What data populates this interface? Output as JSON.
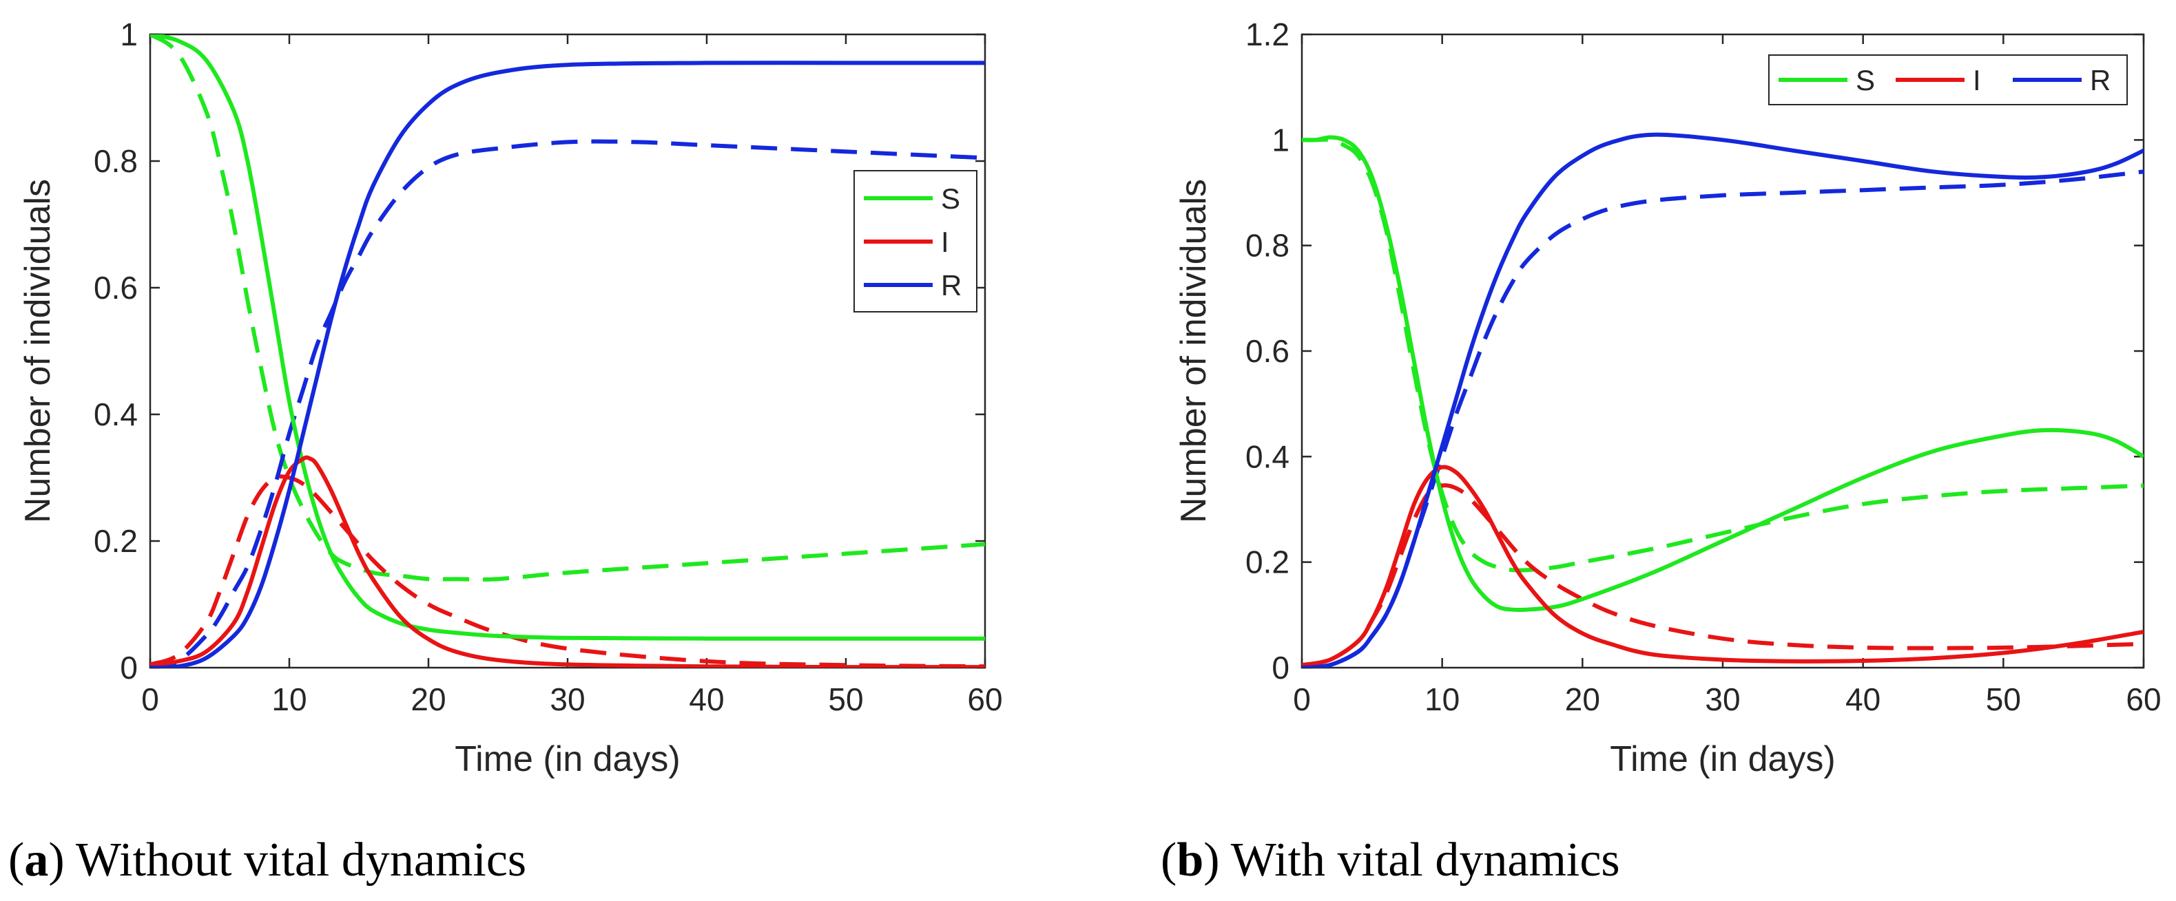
{
  "chart_data": [
    {
      "type": "line",
      "panel_letter": "a",
      "caption": "Without vital dynamics",
      "xlabel": "Time (in days)",
      "ylabel": "Number of individuals",
      "xlim": [
        0,
        60
      ],
      "ylim": [
        0,
        1
      ],
      "xticks": [
        "0",
        "10",
        "20",
        "30",
        "40",
        "50",
        "60"
      ],
      "yticks": [
        "0",
        "0.2",
        "0.4",
        "0.6",
        "0.8",
        "1"
      ],
      "legend": {
        "position": "right-middle",
        "orientation": "vertical",
        "entries": [
          "S",
          "I",
          "R"
        ]
      },
      "colors": {
        "S": "#1ee81e",
        "I": "#e81414",
        "R": "#1428dc"
      },
      "series": [
        {
          "name": "S",
          "style": "solid",
          "x": [
            0,
            2,
            4,
            6,
            7,
            8,
            9,
            10,
            11,
            12,
            13,
            14,
            15,
            16,
            18,
            20,
            22,
            25,
            30,
            40,
            50,
            60
          ],
          "y": [
            1.0,
            0.99,
            0.96,
            0.88,
            0.8,
            0.68,
            0.55,
            0.42,
            0.32,
            0.24,
            0.18,
            0.14,
            0.11,
            0.09,
            0.07,
            0.06,
            0.055,
            0.05,
            0.047,
            0.046,
            0.046,
            0.046
          ]
        },
        {
          "name": "I",
          "style": "solid",
          "x": [
            0,
            2,
            4,
            6,
            7,
            8,
            9,
            10,
            11,
            11.5,
            12,
            13,
            14,
            15,
            16,
            18,
            20,
            22,
            25,
            30,
            40,
            50,
            60
          ],
          "y": [
            0.005,
            0.01,
            0.025,
            0.07,
            0.12,
            0.19,
            0.26,
            0.31,
            0.33,
            0.33,
            0.32,
            0.28,
            0.23,
            0.18,
            0.14,
            0.08,
            0.045,
            0.025,
            0.012,
            0.005,
            0.002,
            0.001,
            0.001
          ]
        },
        {
          "name": "R",
          "style": "solid",
          "x": [
            0,
            2,
            4,
            6,
            7,
            8,
            9,
            10,
            11,
            12,
            13,
            14,
            15,
            16,
            18,
            20,
            22,
            25,
            30,
            40,
            50,
            60
          ],
          "y": [
            0.0,
            0.002,
            0.015,
            0.05,
            0.08,
            0.13,
            0.2,
            0.28,
            0.37,
            0.46,
            0.55,
            0.63,
            0.7,
            0.76,
            0.84,
            0.89,
            0.92,
            0.94,
            0.952,
            0.955,
            0.955,
            0.955
          ]
        },
        {
          "name": "S",
          "style": "dashed",
          "x": [
            0,
            2,
            4,
            5,
            6,
            7,
            8,
            9,
            10,
            11,
            12,
            13,
            14,
            16,
            18,
            20,
            22,
            25,
            30,
            40,
            50,
            60
          ],
          "y": [
            1.0,
            0.97,
            0.88,
            0.8,
            0.7,
            0.58,
            0.47,
            0.37,
            0.3,
            0.25,
            0.21,
            0.18,
            0.165,
            0.15,
            0.145,
            0.14,
            0.14,
            0.14,
            0.15,
            0.165,
            0.18,
            0.195
          ]
        },
        {
          "name": "I",
          "style": "dashed",
          "x": [
            0,
            2,
            4,
            5,
            6,
            7,
            8,
            9,
            10,
            11,
            12,
            14,
            16,
            18,
            20,
            22,
            25,
            30,
            40,
            50,
            60
          ],
          "y": [
            0.005,
            0.02,
            0.07,
            0.12,
            0.18,
            0.24,
            0.28,
            0.3,
            0.3,
            0.29,
            0.27,
            0.22,
            0.17,
            0.13,
            0.1,
            0.08,
            0.055,
            0.03,
            0.01,
            0.004,
            0.002
          ]
        },
        {
          "name": "R",
          "style": "dashed",
          "x": [
            0,
            2,
            4,
            5,
            6,
            7,
            8,
            9,
            10,
            11,
            12,
            13,
            14,
            15,
            16,
            18,
            20,
            22,
            25,
            30,
            35,
            40,
            50,
            60
          ],
          "y": [
            0.0,
            0.01,
            0.05,
            0.08,
            0.12,
            0.16,
            0.22,
            0.29,
            0.37,
            0.44,
            0.51,
            0.56,
            0.61,
            0.65,
            0.69,
            0.75,
            0.79,
            0.81,
            0.82,
            0.83,
            0.83,
            0.825,
            0.815,
            0.805
          ]
        }
      ]
    },
    {
      "type": "line",
      "panel_letter": "b",
      "caption": "With vital dynamics",
      "xlabel": "Time (in days)",
      "ylabel": "Number of individuals",
      "xlim": [
        0,
        60
      ],
      "ylim": [
        0,
        1.2
      ],
      "xticks": [
        "0",
        "10",
        "20",
        "30",
        "40",
        "50",
        "60"
      ],
      "yticks": [
        "0",
        "0.2",
        "0.4",
        "0.6",
        "0.8",
        "1",
        "1.2"
      ],
      "legend": {
        "position": "top-right",
        "orientation": "horizontal",
        "entries": [
          "S",
          "I",
          "R"
        ]
      },
      "colors": {
        "S": "#1ee81e",
        "I": "#e81414",
        "R": "#1428dc"
      },
      "series": [
        {
          "name": "S",
          "style": "solid",
          "x": [
            0,
            1,
            2,
            3,
            4,
            5,
            6,
            7,
            8,
            9,
            10,
            11,
            12,
            13,
            14,
            15,
            16,
            18,
            20,
            25,
            30,
            35,
            40,
            45,
            50,
            53,
            56,
            58,
            60
          ],
          "y": [
            1.0,
            1.0,
            1.005,
            1.0,
            0.98,
            0.93,
            0.84,
            0.72,
            0.58,
            0.44,
            0.32,
            0.23,
            0.17,
            0.135,
            0.115,
            0.11,
            0.11,
            0.115,
            0.13,
            0.18,
            0.24,
            0.3,
            0.36,
            0.41,
            0.44,
            0.45,
            0.445,
            0.43,
            0.4
          ]
        },
        {
          "name": "I",
          "style": "solid",
          "x": [
            0,
            2,
            4,
            5,
            6,
            7,
            8,
            9,
            10,
            11,
            12,
            13,
            14,
            15,
            16,
            18,
            20,
            22,
            25,
            30,
            35,
            40,
            45,
            50,
            55,
            60
          ],
          "y": [
            0.005,
            0.015,
            0.05,
            0.09,
            0.15,
            0.23,
            0.31,
            0.36,
            0.38,
            0.37,
            0.34,
            0.3,
            0.25,
            0.2,
            0.16,
            0.1,
            0.065,
            0.045,
            0.025,
            0.015,
            0.012,
            0.013,
            0.018,
            0.028,
            0.045,
            0.068
          ]
        },
        {
          "name": "R",
          "style": "solid",
          "x": [
            0,
            2,
            4,
            5,
            6,
            7,
            8,
            9,
            10,
            11,
            12,
            13,
            14,
            15,
            16,
            18,
            20,
            22,
            25,
            30,
            35,
            40,
            45,
            50,
            53,
            56,
            58,
            60
          ],
          "y": [
            0.0,
            0.005,
            0.03,
            0.06,
            0.1,
            0.16,
            0.24,
            0.33,
            0.42,
            0.51,
            0.6,
            0.68,
            0.75,
            0.81,
            0.86,
            0.93,
            0.97,
            0.995,
            1.01,
            1.0,
            0.98,
            0.96,
            0.94,
            0.93,
            0.93,
            0.94,
            0.955,
            0.98
          ]
        },
        {
          "name": "S",
          "style": "dashed",
          "x": [
            0,
            1,
            2,
            3,
            4,
            5,
            6,
            7,
            8,
            9,
            10,
            11,
            12,
            13,
            14,
            15,
            16,
            18,
            20,
            25,
            30,
            35,
            40,
            45,
            50,
            55,
            60
          ],
          "y": [
            1.0,
            1.0,
            1.0,
            0.99,
            0.97,
            0.92,
            0.83,
            0.7,
            0.56,
            0.43,
            0.33,
            0.26,
            0.22,
            0.2,
            0.19,
            0.185,
            0.185,
            0.19,
            0.2,
            0.225,
            0.255,
            0.285,
            0.31,
            0.325,
            0.335,
            0.34,
            0.345
          ]
        },
        {
          "name": "I",
          "style": "dashed",
          "x": [
            0,
            2,
            4,
            5,
            6,
            7,
            8,
            9,
            10,
            11,
            12,
            14,
            16,
            18,
            20,
            22,
            25,
            30,
            35,
            40,
            45,
            50,
            55,
            60
          ],
          "y": [
            0.005,
            0.015,
            0.05,
            0.09,
            0.14,
            0.21,
            0.28,
            0.33,
            0.345,
            0.34,
            0.32,
            0.26,
            0.2,
            0.16,
            0.13,
            0.105,
            0.08,
            0.055,
            0.043,
            0.038,
            0.037,
            0.038,
            0.041,
            0.045
          ]
        },
        {
          "name": "R",
          "style": "dashed",
          "x": [
            0,
            2,
            4,
            5,
            6,
            7,
            8,
            9,
            10,
            11,
            12,
            13,
            14,
            15,
            16,
            18,
            20,
            22,
            25,
            30,
            35,
            40,
            45,
            50,
            55,
            60
          ],
          "y": [
            0.0,
            0.005,
            0.03,
            0.06,
            0.1,
            0.16,
            0.24,
            0.32,
            0.4,
            0.48,
            0.55,
            0.62,
            0.68,
            0.73,
            0.77,
            0.82,
            0.85,
            0.87,
            0.885,
            0.895,
            0.9,
            0.905,
            0.91,
            0.915,
            0.925,
            0.94
          ]
        }
      ]
    }
  ]
}
